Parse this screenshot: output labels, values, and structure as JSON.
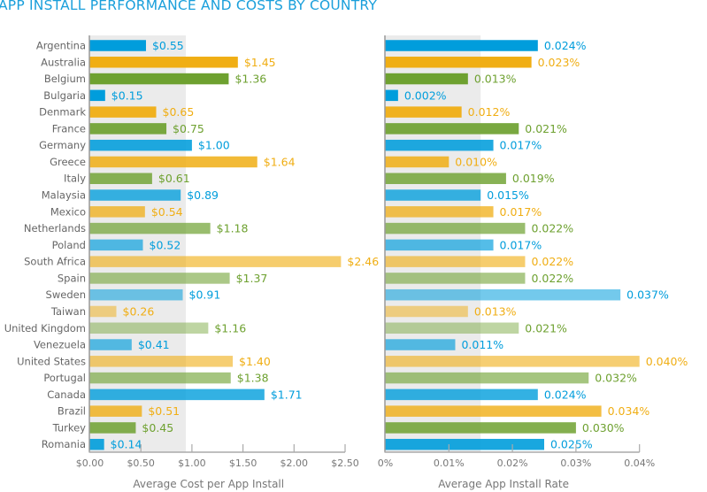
{
  "title": "APP INSTALL PERFORMANCE AND COSTS BY COUNTRY",
  "colors": {
    "blue": "#009ddc",
    "orange": "#f0ae14",
    "green": "#6ea130",
    "shade": "#ebebeb",
    "axis": "#aaaaaa",
    "label": "#666666"
  },
  "chart_data": [
    {
      "type": "bar",
      "orientation": "horizontal",
      "title": "",
      "xlabel": "Average Cost per App Install",
      "ylabel": "",
      "xlim": [
        0,
        2.5
      ],
      "xticks": [
        0,
        0.5,
        1.0,
        1.5,
        2.0,
        2.5
      ],
      "xtick_labels": [
        "$0.00",
        "$0.50",
        "$1.00",
        "$1.50",
        "$2.00",
        "$2.50"
      ],
      "shaded_band": [
        0,
        0.94
      ],
      "categories": [
        "Argentina",
        "Australia",
        "Belgium",
        "Bulgaria",
        "Denmark",
        "France",
        "Germany",
        "Greece",
        "Italy",
        "Malaysia",
        "Mexico",
        "Netherlands",
        "Poland",
        "South Africa",
        "Spain",
        "Sweden",
        "Taiwan",
        "United Kingdom",
        "Venezuela",
        "United States",
        "Portugal",
        "Canada",
        "Brazil",
        "Turkey",
        "Romania"
      ],
      "values": [
        0.55,
        1.45,
        1.36,
        0.15,
        0.65,
        0.75,
        1.0,
        1.64,
        0.61,
        0.89,
        0.54,
        1.18,
        0.52,
        2.46,
        1.37,
        0.91,
        0.26,
        1.16,
        0.41,
        1.4,
        1.38,
        1.71,
        0.51,
        0.45,
        0.14
      ],
      "value_labels": [
        "$0.55",
        "$1.45",
        "$1.36",
        "$0.15",
        "$0.65",
        "$0.75",
        "$1.00",
        "$1.64",
        "$0.61",
        "$0.89",
        "$0.54",
        "$1.18",
        "$0.52",
        "$2.46",
        "$1.37",
        "$0.91",
        "$0.26",
        "$1.16",
        "$0.41",
        "$1.40",
        "$1.38",
        "$1.71",
        "$0.51",
        "$0.45",
        "$0.14"
      ],
      "grid": false,
      "legend": "none"
    },
    {
      "type": "bar",
      "orientation": "horizontal",
      "title": "",
      "xlabel": "Average App Install Rate",
      "ylabel": "",
      "xlim": [
        0,
        0.04
      ],
      "xticks": [
        0,
        0.01,
        0.02,
        0.03,
        0.04
      ],
      "xtick_labels": [
        "0%",
        "0.01%",
        "0.02%",
        "0.03%",
        "0.04%"
      ],
      "shaded_band": [
        0,
        0.015
      ],
      "categories": [
        "Argentina",
        "Australia",
        "Belgium",
        "Bulgaria",
        "Denmark",
        "France",
        "Germany",
        "Greece",
        "Italy",
        "Malaysia",
        "Mexico",
        "Netherlands",
        "Poland",
        "South Africa",
        "Spain",
        "Sweden",
        "Taiwan",
        "United Kingdom",
        "Venezuela",
        "United States",
        "Portugal",
        "Canada",
        "Brazil",
        "Turkey",
        "Romania"
      ],
      "values": [
        0.024,
        0.023,
        0.013,
        0.002,
        0.012,
        0.021,
        0.017,
        0.01,
        0.019,
        0.015,
        0.017,
        0.022,
        0.017,
        0.022,
        0.022,
        0.037,
        0.013,
        0.021,
        0.011,
        0.04,
        0.032,
        0.024,
        0.034,
        0.03,
        0.025
      ],
      "value_labels": [
        "0.024%",
        "0.023%",
        "0.013%",
        "0.002%",
        "0.012%",
        "0.021%",
        "0.017%",
        "0.010%",
        "0.019%",
        "0.015%",
        "0.017%",
        "0.022%",
        "0.017%",
        "0.022%",
        "0.022%",
        "0.037%",
        "0.013%",
        "0.021%",
        "0.011%",
        "0.040%",
        "0.032%",
        "0.024%",
        "0.034%",
        "0.030%",
        "0.025%"
      ],
      "grid": false,
      "legend": "none"
    }
  ],
  "bar_color_cycle": [
    "blue",
    "orange",
    "green"
  ],
  "bar_opacity": [
    1,
    1,
    1,
    1,
    0.95,
    0.92,
    0.88,
    0.85,
    0.82,
    0.78,
    0.75,
    0.7,
    0.67,
    0.62,
    0.58,
    0.55,
    0.5,
    0.45,
    0.65,
    0.6,
    0.62,
    0.8,
    0.8,
    0.85,
    0.9
  ]
}
